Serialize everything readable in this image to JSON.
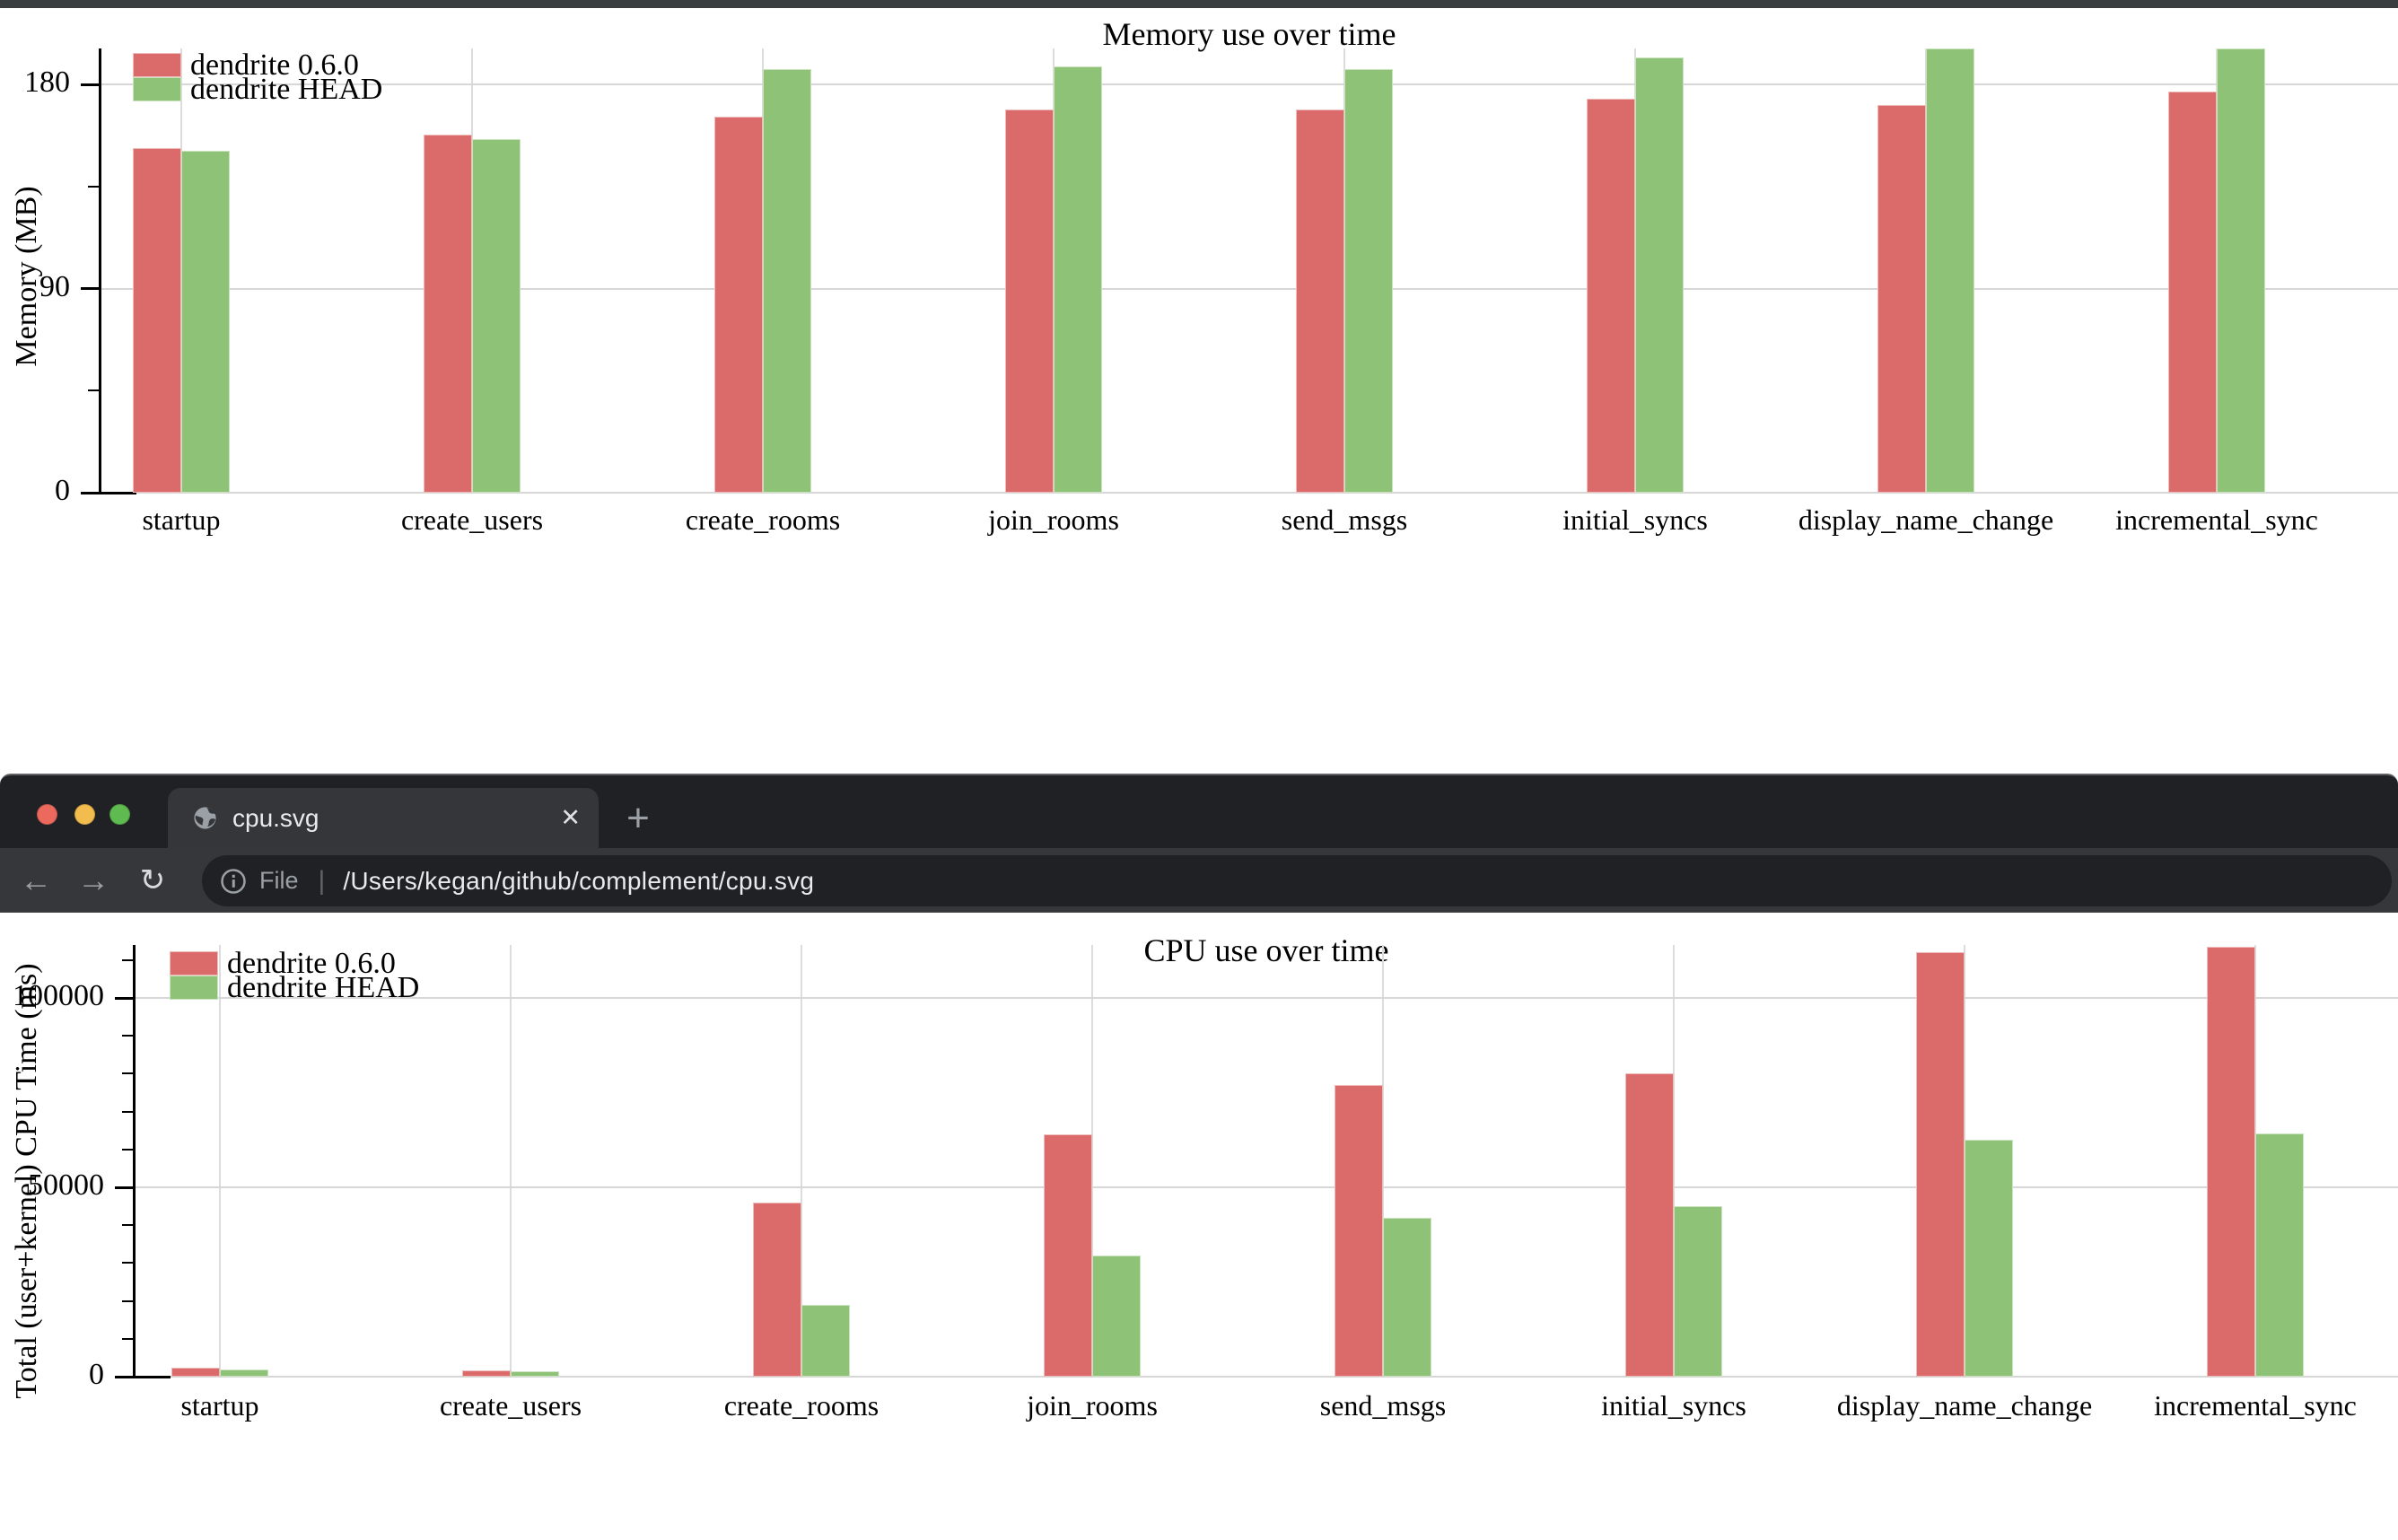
{
  "window": {
    "tab_title": "cpu.svg",
    "url_scheme_label": "File",
    "url_separator": "|",
    "url": "/Users/kegan/github/complement/cpu.svg",
    "icons": {
      "close": "✕",
      "new_tab": "+",
      "back": "←",
      "forward": "→",
      "reload": "↻"
    },
    "traffic_light_colors": {
      "close": "#ec695e",
      "minimize": "#f2bd4e",
      "zoom": "#5fbb50"
    }
  },
  "colors": {
    "series_red": "#db6b6b",
    "series_green": "#8ec276",
    "chrome_dark": "#202124",
    "chrome_light": "#36373b",
    "gridline": "#d7d7d7"
  },
  "chart_data": [
    {
      "type": "bar",
      "title": "Memory use over time",
      "ylabel": "Memory (MB)",
      "xlabel": "",
      "grid": true,
      "legend_position": "top-left",
      "categories": [
        "startup",
        "create_users",
        "create_rooms",
        "join_rooms",
        "send_msgs",
        "initial_syncs",
        "display_name_change",
        "incremental_sync"
      ],
      "series": [
        {
          "name": "dendrite 0.6.0",
          "color": "#db6b6b",
          "values": [
            152,
            158,
            166,
            169,
            169,
            174,
            171,
            177
          ]
        },
        {
          "name": "dendrite HEAD",
          "color": "#8ec276",
          "values": [
            151,
            156,
            187,
            188,
            187,
            192,
            196,
            196
          ]
        }
      ],
      "yticks": [
        0,
        90,
        180
      ],
      "minor_tick_step": 45,
      "ylim": [
        0,
        196
      ]
    },
    {
      "type": "bar",
      "title": "CPU use over time",
      "ylabel": "Total (user+kernel) CPU Time (ms)",
      "xlabel": "",
      "grid": true,
      "legend_position": "top-left",
      "categories": [
        "startup",
        "create_users",
        "create_rooms",
        "join_rooms",
        "send_msgs",
        "initial_syncs",
        "display_name_change",
        "incremental_sync"
      ],
      "series": [
        {
          "name": "dendrite 0.6.0",
          "color": "#db6b6b",
          "values": [
            2400,
            1600,
            46000,
            64000,
            77000,
            80000,
            112000,
            113600
          ]
        },
        {
          "name": "dendrite HEAD",
          "color": "#8ec276",
          "values": [
            1900,
            1500,
            19000,
            32000,
            42000,
            45000,
            62500,
            64300
          ]
        }
      ],
      "yticks": [
        0,
        50000,
        100000
      ],
      "minor_tick_step": 10000,
      "ylim": [
        0,
        114000
      ]
    }
  ]
}
